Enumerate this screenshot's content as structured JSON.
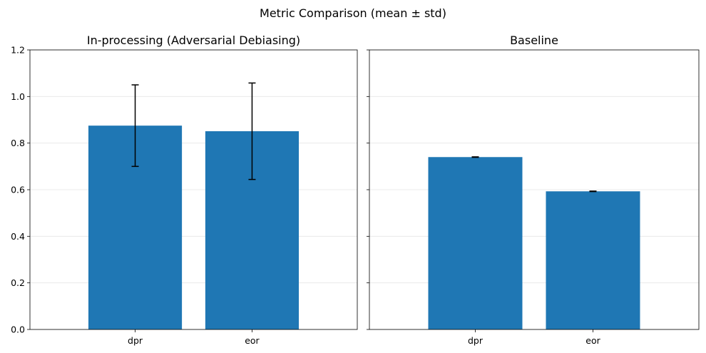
{
  "figure": {
    "title": "Metric Comparison (mean ± std)"
  },
  "colors": {
    "bar": "#1f77b4",
    "errorbar": "#000000",
    "grid": "#e5e5e5",
    "spine": "#000000"
  },
  "chart_data": [
    {
      "type": "bar",
      "title": "In-processing (Adversarial Debiasing)",
      "xlabel": "",
      "ylabel": "",
      "categories": [
        "dpr",
        "eor"
      ],
      "values": [
        0.875,
        0.851
      ],
      "errors": [
        0.175,
        0.207
      ],
      "ylim": [
        0,
        1.2
      ],
      "yticks": [
        "0.0",
        "0.2",
        "0.4",
        "0.6",
        "0.8",
        "1.0",
        "1.2"
      ],
      "grid": "y",
      "shared_y_labels_shown": true
    },
    {
      "type": "bar",
      "title": "Baseline",
      "xlabel": "",
      "ylabel": "",
      "categories": [
        "dpr",
        "eor"
      ],
      "values": [
        0.74,
        0.593
      ],
      "errors": [
        0.001,
        0.001
      ],
      "ylim": [
        0,
        1.2
      ],
      "yticks": [
        "0.0",
        "0.2",
        "0.4",
        "0.6",
        "0.8",
        "1.0",
        "1.2"
      ],
      "grid": "y",
      "shared_y_labels_shown": false
    }
  ]
}
